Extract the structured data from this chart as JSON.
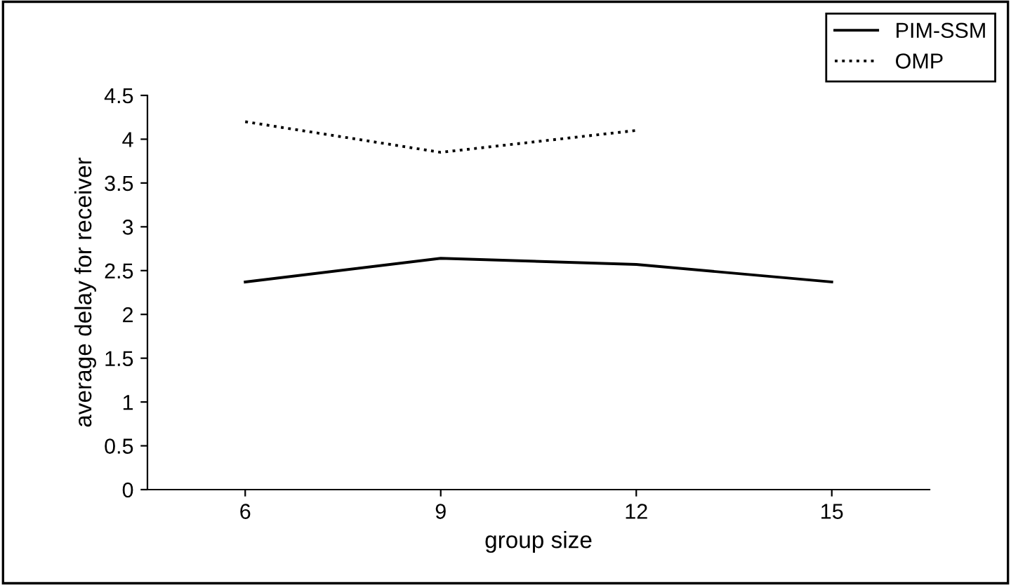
{
  "chart_data": {
    "type": "line",
    "xlabel": "group size",
    "ylabel": "average delay for receiver",
    "categories": [
      "6",
      "9",
      "12",
      "15"
    ],
    "series": [
      {
        "name": "PIM-SSM",
        "color": "#000000",
        "line_style": "solid",
        "values": [
          2.37,
          2.64,
          2.57,
          2.37
        ]
      },
      {
        "name": "OMP",
        "color": "#000000",
        "line_style": "dotted",
        "values": [
          4.2,
          3.85,
          4.1,
          null
        ]
      }
    ],
    "ylim": [
      0,
      4.5
    ],
    "yticks": [
      0,
      0.5,
      1,
      1.5,
      2,
      2.5,
      3,
      3.5,
      4,
      4.5
    ],
    "grid": false,
    "legend": "top right",
    "marker": "none"
  }
}
